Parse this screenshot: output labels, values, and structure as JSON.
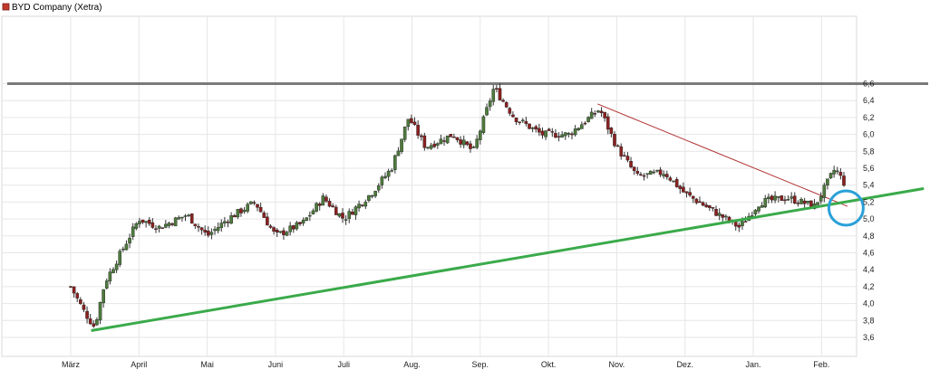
{
  "chart_data": {
    "type": "candlestick",
    "title": "BYD Company (Xetra)",
    "legend": {
      "entries": [
        "BYD Company (Xetra)"
      ],
      "placement": "top-left"
    },
    "x_tick_labels": [
      "März",
      "April",
      "Mai",
      "Juni",
      "Juli",
      "Aug.",
      "Sep.",
      "Okt.",
      "Nov.",
      "Dez.",
      "Jan.",
      "Feb."
    ],
    "y_tick_labels": [
      "3,6",
      "3,8",
      "4,0",
      "4,2",
      "4,4",
      "4,6",
      "4,8",
      "5,0",
      "5,2",
      "5,4",
      "5,6",
      "5,8",
      "6,0",
      "6,2",
      "6,4",
      "6,6"
    ],
    "ylim": [
      3.5,
      6.7
    ],
    "grid": true,
    "y_axis_position": "right",
    "colors": {
      "up": "#4e7a3c",
      "down": "#8b2020",
      "wick": "#333333",
      "grid": "#e6e6e6",
      "support": "#3aaa4a",
      "resistance": "#7a7a7a",
      "trend": "#b03030",
      "marker": "#2aa0d8"
    },
    "annotations": {
      "resistance_line": {
        "price": 6.6
      },
      "support_trendline": {
        "from": {
          "x": 0.3,
          "price": 3.68
        },
        "to": {
          "x": 12.5,
          "price": 5.36
        }
      },
      "downtrend_line": {
        "from": {
          "x": 7.72,
          "price": 6.36
        },
        "to": {
          "x": 11.38,
          "price": 5.15
        }
      },
      "circle_marker": {
        "x": 11.36,
        "price": 5.13
      }
    },
    "series": [
      {
        "name": "BYD Company (Xetra)",
        "ohlc_anchors": [
          {
            "x": 0.0,
            "close": 4.2
          },
          {
            "x": 0.2,
            "close": 3.9
          },
          {
            "x": 0.35,
            "close": 3.72
          },
          {
            "x": 0.5,
            "close": 4.25
          },
          {
            "x": 0.8,
            "close": 4.7
          },
          {
            "x": 1.0,
            "close": 5.0
          },
          {
            "x": 1.3,
            "close": 4.9
          },
          {
            "x": 1.7,
            "close": 5.05
          },
          {
            "x": 2.0,
            "close": 4.8
          },
          {
            "x": 2.3,
            "close": 5.0
          },
          {
            "x": 2.7,
            "close": 5.2
          },
          {
            "x": 3.0,
            "close": 4.8
          },
          {
            "x": 3.4,
            "close": 4.95
          },
          {
            "x": 3.7,
            "close": 5.25
          },
          {
            "x": 4.0,
            "close": 5.0
          },
          {
            "x": 4.4,
            "close": 5.3
          },
          {
            "x": 4.7,
            "close": 5.6
          },
          {
            "x": 4.95,
            "close": 6.2
          },
          {
            "x": 5.2,
            "close": 5.85
          },
          {
            "x": 5.6,
            "close": 6.0
          },
          {
            "x": 5.9,
            "close": 5.8
          },
          {
            "x": 6.2,
            "close": 6.55
          },
          {
            "x": 6.5,
            "close": 6.2
          },
          {
            "x": 6.9,
            "close": 6.0
          },
          {
            "x": 7.3,
            "close": 6.0
          },
          {
            "x": 7.75,
            "close": 6.3
          },
          {
            "x": 8.0,
            "close": 5.85
          },
          {
            "x": 8.3,
            "close": 5.5
          },
          {
            "x": 8.7,
            "close": 5.55
          },
          {
            "x": 9.0,
            "close": 5.3
          },
          {
            "x": 9.5,
            "close": 5.05
          },
          {
            "x": 9.8,
            "close": 4.9
          },
          {
            "x": 10.1,
            "close": 5.2
          },
          {
            "x": 10.5,
            "close": 5.25
          },
          {
            "x": 10.9,
            "close": 5.15
          },
          {
            "x": 11.0,
            "close": 5.3
          },
          {
            "x": 11.2,
            "close": 5.6
          },
          {
            "x": 11.35,
            "close": 5.4
          }
        ]
      }
    ]
  }
}
